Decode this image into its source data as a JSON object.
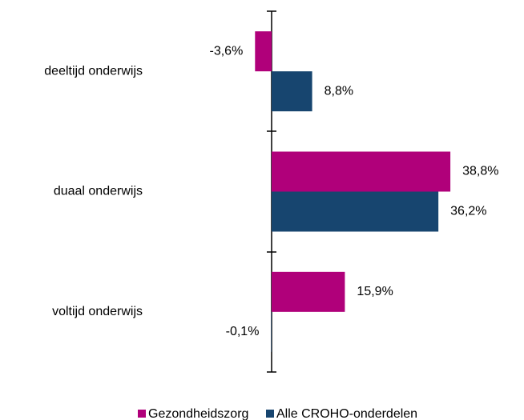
{
  "chart_data": {
    "type": "barh",
    "categories": [
      "deeltijd onderwijs",
      "duaal onderwijs",
      "voltijd onderwijs"
    ],
    "series": [
      {
        "name": "Gezondheidszorg",
        "color": "#b0007a",
        "values": [
          -3.6,
          38.8,
          15.9
        ],
        "value_labels": [
          "-3,6%",
          "38,8%",
          "15,9%"
        ]
      },
      {
        "name": "Alle CROHO-onderdelen",
        "color": "#17456f",
        "values": [
          8.8,
          36.2,
          -0.1
        ],
        "value_labels": [
          "8,8%",
          "36,2%",
          "-0,1%"
        ]
      }
    ],
    "xlim": [
      -10,
      50
    ],
    "legend": "bottom"
  }
}
